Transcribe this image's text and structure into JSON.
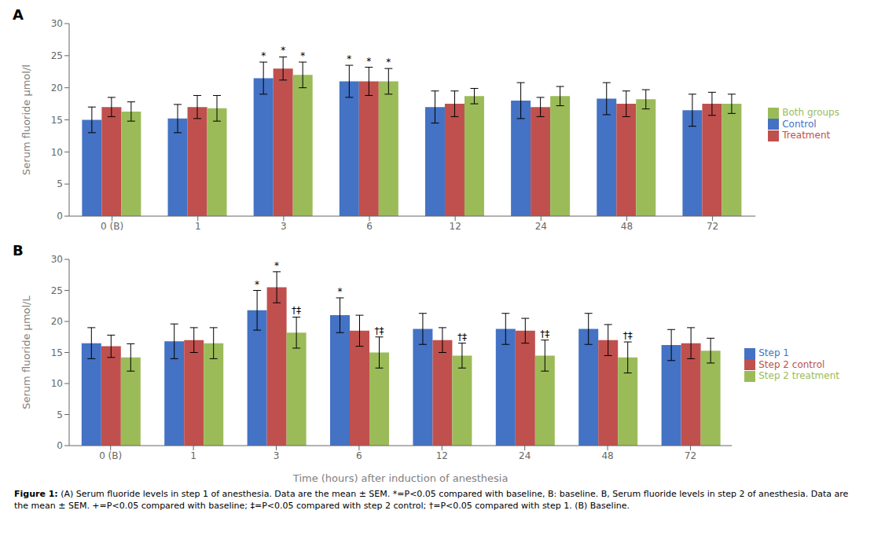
{
  "chart_data": [
    {
      "type": "bar",
      "title": "A",
      "ylabel": "Serum fluoride μmol/l",
      "categories": [
        "0 (B)",
        "1",
        "3",
        "6",
        "12",
        "24",
        "48",
        "72"
      ],
      "series": [
        {
          "name": "Control",
          "color": "#4472C4",
          "values": [
            15.0,
            15.2,
            21.5,
            21.0,
            17.0,
            18.0,
            18.3,
            16.5
          ],
          "errors": [
            2.0,
            2.2,
            2.5,
            2.5,
            2.5,
            2.8,
            2.5,
            2.5
          ],
          "marks": [
            null,
            null,
            "*",
            "*",
            null,
            null,
            null,
            null
          ]
        },
        {
          "name": "Treatment",
          "color": "#C0504D",
          "values": [
            17.0,
            17.0,
            23.0,
            21.0,
            17.5,
            17.0,
            17.5,
            17.5
          ],
          "errors": [
            1.5,
            1.8,
            1.8,
            2.2,
            2.0,
            1.5,
            2.0,
            1.8
          ],
          "marks": [
            null,
            null,
            "*",
            "*",
            null,
            null,
            null,
            null
          ]
        },
        {
          "name": "Both groups",
          "color": "#9BBB59",
          "values": [
            16.3,
            16.8,
            22.0,
            21.0,
            18.7,
            18.7,
            18.2,
            17.5
          ],
          "errors": [
            1.5,
            2.0,
            2.0,
            2.0,
            1.2,
            1.5,
            1.5,
            1.5
          ],
          "marks": [
            null,
            null,
            "*",
            "*",
            null,
            null,
            null,
            null
          ]
        }
      ],
      "ylim": [
        0,
        30
      ],
      "yticks": [
        0,
        5,
        10,
        15,
        20,
        25,
        30
      ],
      "grid": false,
      "legend": "right"
    },
    {
      "type": "bar",
      "title": "B",
      "ylabel": "Serum fluoride μmol/L",
      "xlabel": "Time (hours) after induction of anesthesia",
      "categories": [
        "0 (B)",
        "1",
        "3",
        "6",
        "12",
        "24",
        "48",
        "72"
      ],
      "series": [
        {
          "name": "Step 1",
          "color": "#4472C4",
          "values": [
            16.5,
            16.8,
            21.8,
            21.0,
            18.8,
            18.8,
            18.8,
            16.2
          ],
          "errors": [
            2.5,
            2.8,
            3.2,
            2.8,
            2.5,
            2.5,
            2.5,
            2.5
          ],
          "marks": [
            null,
            null,
            "*",
            "*",
            null,
            null,
            null,
            null
          ]
        },
        {
          "name": "Step 2 control",
          "color": "#C0504D",
          "values": [
            16.0,
            17.0,
            25.5,
            18.5,
            17.0,
            18.5,
            17.0,
            16.5
          ],
          "errors": [
            1.8,
            2.0,
            2.5,
            2.5,
            2.0,
            2.0,
            2.5,
            2.5
          ],
          "marks": [
            null,
            null,
            "*",
            null,
            null,
            null,
            null,
            null
          ]
        },
        {
          "name": "Step 2 treatment",
          "color": "#9BBB59",
          "values": [
            14.2,
            16.5,
            18.2,
            15.0,
            14.5,
            14.5,
            14.2,
            15.3
          ],
          "errors": [
            2.2,
            2.5,
            2.5,
            2.5,
            2.0,
            2.5,
            2.5,
            2.0
          ],
          "marks": [
            null,
            null,
            "†‡",
            "†‡",
            "†‡",
            "†‡",
            "†‡",
            null
          ]
        }
      ],
      "ylim": [
        0,
        30
      ],
      "yticks": [
        0,
        5,
        10,
        15,
        20,
        25,
        30
      ],
      "grid": false,
      "legend": "right"
    }
  ],
  "caption_bold": "Figure 1:",
  "caption": "(A) Serum fluoride levels in step 1 of anesthesia. Data are the mean ± SEM. *=P<0.05 compared with baseline, B: baseline. B, Serum fluoride levels in step 2 of anesthesia. Data are the mean ± SEM. +=P<0.05 compared with baseline; ‡=P<0.05 compared with step 2 control; †=P<0.05 compared with step 1. (B) Baseline."
}
